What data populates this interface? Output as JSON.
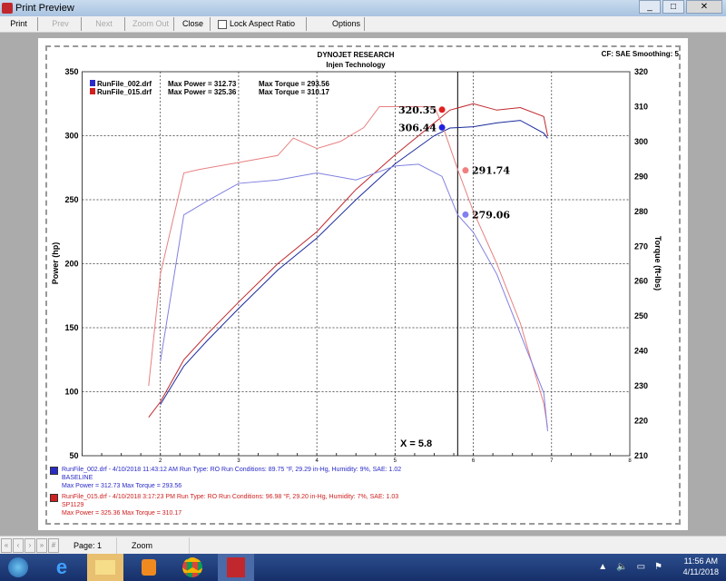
{
  "window": {
    "title": "Print Preview",
    "buttons": [
      "_",
      "□",
      "✕"
    ]
  },
  "toolbar": {
    "print": "Print",
    "prev": "Prev",
    "next": "Next",
    "zoom_out": "Zoom Out",
    "close": "Close",
    "lock_aspect": "Lock Aspect Ratio",
    "lock_aspect_checked": false,
    "options": "Options"
  },
  "report": {
    "company": "DYNOJET RESEARCH",
    "subtitle": "Injen Technology",
    "cf": "CF: SAE  Smoothing: 5",
    "cursor_label": "X = 5.8"
  },
  "legend_top": [
    {
      "file": "RunFile_002.drf",
      "power": "Max Power = 312.73",
      "torque": "Max Torque = 293.56",
      "color": "#2a2ac8"
    },
    {
      "file": "RunFile_015.drf",
      "power": "Max Power = 325.36",
      "torque": "Max Torque = 310.17",
      "color": "#d02020"
    }
  ],
  "legend_bottom": [
    {
      "line1": "RunFile_002.drf - 4/10/2018 11:43:12 AM  Run Type: RO  Run Conditions: 89.75 °F, 29.29 in-Hg,  Humidity:  9%, SAE: 1.02",
      "line2": "BASELINE",
      "line3": "Max Power = 312.73  Max Torque = 293.56",
      "color": "#2a2ac8"
    },
    {
      "line1": "RunFile_015.drf - 4/10/2018 3:17:23 PM  Run Type: RO  Run Conditions: 96.98 °F, 29.20 in-Hg,  Humidity:  7%, SAE: 1.03",
      "line2": "SP1129",
      "line3": "Max Power = 325.36  Max Torque = 310.17",
      "color": "#d02020"
    }
  ],
  "status": {
    "page": "Page: 1",
    "zoom": "Zoom"
  },
  "taskbar": {
    "time": "11:56 AM",
    "date": "4/11/2018"
  },
  "chart_data": {
    "type": "line",
    "xlim": [
      1,
      8
    ],
    "x_ticks": [
      "2",
      "3",
      "4",
      "5",
      "6",
      "7",
      "8"
    ],
    "ylabel": "Power (hp)",
    "ylim": [
      50,
      350
    ],
    "y_ticks": [
      "350",
      "300",
      "250",
      "200",
      "150",
      "100",
      "50"
    ],
    "y2label": "Torque (ft-lbs)",
    "y2lim": [
      210,
      320
    ],
    "y2_ticks": [
      "320",
      "310",
      "300",
      "290",
      "280",
      "270",
      "260",
      "250",
      "240",
      "230",
      "220",
      "210"
    ],
    "grid": true,
    "cursor_x": 5.8,
    "series": [
      {
        "name": "RunFile_015.drf",
        "quantity": "power",
        "axis": "left",
        "color": "#c0282d",
        "x": [
          1.85,
          2.0,
          2.3,
          2.6,
          3.0,
          3.5,
          4.0,
          4.5,
          5.0,
          5.4,
          5.7,
          6.0,
          6.3,
          6.6,
          6.9,
          6.95
        ],
        "y": [
          80,
          92,
          125,
          145,
          170,
          200,
          225,
          258,
          285,
          305,
          320,
          325,
          320,
          322,
          315,
          300
        ]
      },
      {
        "name": "RunFile_002.drf",
        "quantity": "power",
        "axis": "left",
        "color": "#1a2a9c",
        "x": [
          2.0,
          2.3,
          2.6,
          3.0,
          3.5,
          4.0,
          4.5,
          5.0,
          5.5,
          5.7,
          6.0,
          6.3,
          6.6,
          6.9,
          6.95
        ],
        "y": [
          90,
          120,
          140,
          165,
          195,
          220,
          250,
          278,
          300,
          306,
          307,
          310,
          312,
          302,
          298
        ]
      },
      {
        "name": "RunFile_015.drf",
        "quantity": "torque",
        "axis": "right",
        "color": "#e88080",
        "x": [
          1.85,
          2.0,
          2.3,
          2.5,
          3.0,
          3.5,
          3.7,
          4.0,
          4.3,
          4.6,
          4.8,
          5.5,
          5.6,
          5.8,
          6.0,
          6.3,
          6.6,
          6.9,
          6.95
        ],
        "y": [
          230,
          262,
          291,
          292,
          294,
          296,
          301,
          298,
          300,
          304,
          310,
          310,
          305,
          292,
          280,
          265,
          248,
          225,
          218
        ]
      },
      {
        "name": "RunFile_002.drf",
        "quantity": "torque",
        "axis": "right",
        "color": "#8080e0",
        "x": [
          2.0,
          2.3,
          2.6,
          3.0,
          3.5,
          4.0,
          4.5,
          5.0,
          5.3,
          5.6,
          5.8,
          6.0,
          6.3,
          6.6,
          6.9,
          6.95
        ],
        "y": [
          237,
          279,
          283,
          288,
          289,
          291,
          289,
          293,
          293.5,
          290,
          279,
          274,
          262,
          245,
          228,
          217
        ]
      }
    ],
    "markers": [
      {
        "label": "320.35",
        "axis": "left",
        "x": 5.6,
        "y": 320.35,
        "color": "#e02020"
      },
      {
        "label": "306.44",
        "axis": "left",
        "x": 5.6,
        "y": 306.44,
        "color": "#2020e0"
      },
      {
        "label": "291.74",
        "axis": "right",
        "x": 5.9,
        "y": 291.74,
        "color": "#f08080"
      },
      {
        "label": "279.06",
        "axis": "right",
        "x": 5.9,
        "y": 279.06,
        "color": "#8080f0"
      }
    ]
  }
}
